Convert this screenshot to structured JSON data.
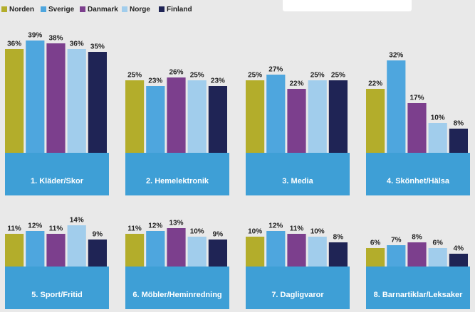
{
  "legend": {
    "names": [
      "Norden",
      "Sverige",
      "Danmark",
      "Norge",
      "Finland"
    ],
    "colors": [
      "#b3ad2b",
      "#4ea6de",
      "#7c3f8d",
      "#a1cdec",
      "#1f2455"
    ]
  },
  "chart_data": [
    {
      "type": "bar",
      "title": "1. Kläder/Skor",
      "values": [
        36,
        39,
        38,
        36,
        35
      ],
      "value_labels": [
        "36%",
        "39%",
        "38%",
        "36%",
        "35%"
      ],
      "ylim": [
        0,
        40
      ]
    },
    {
      "type": "bar",
      "title": "2. Hemelektronik",
      "values": [
        25,
        23,
        26,
        25,
        23
      ],
      "value_labels": [
        "25%",
        "23%",
        "26%",
        "25%",
        "23%"
      ],
      "ylim": [
        0,
        40
      ]
    },
    {
      "type": "bar",
      "title": "3. Media",
      "values": [
        25,
        27,
        22,
        25,
        25
      ],
      "value_labels": [
        "25%",
        "27%",
        "22%",
        "25%",
        "25%"
      ],
      "ylim": [
        0,
        40
      ]
    },
    {
      "type": "bar",
      "title": "4. Skönhet/Hälsa",
      "values": [
        22,
        32,
        17,
        10,
        8
      ],
      "value_labels": [
        "22%",
        "32%",
        "17%",
        "10%",
        "8%"
      ],
      "ylim": [
        0,
        40
      ]
    },
    {
      "type": "bar",
      "title": "5. Sport/Fritid",
      "values": [
        11,
        12,
        11,
        14,
        9
      ],
      "value_labels": [
        "11%",
        "12%",
        "11%",
        "14%",
        "9%"
      ],
      "ylim": [
        0,
        40
      ]
    },
    {
      "type": "bar",
      "title": "6. Möbler/Heminredning",
      "values": [
        11,
        12,
        13,
        10,
        9
      ],
      "value_labels": [
        "11%",
        "12%",
        "13%",
        "10%",
        "9%"
      ],
      "ylim": [
        0,
        40
      ]
    },
    {
      "type": "bar",
      "title": "7. Dagligvaror",
      "values": [
        10,
        12,
        11,
        10,
        8
      ],
      "value_labels": [
        "10%",
        "12%",
        "11%",
        "10%",
        "8%"
      ],
      "ylim": [
        0,
        40
      ]
    },
    {
      "type": "bar",
      "title": "8. Barnartiklar/Leksaker",
      "values": [
        6,
        7,
        8,
        6,
        4
      ],
      "value_labels": [
        "6%",
        "7%",
        "8%",
        "6%",
        "4%"
      ],
      "ylim": [
        0,
        40
      ]
    }
  ]
}
